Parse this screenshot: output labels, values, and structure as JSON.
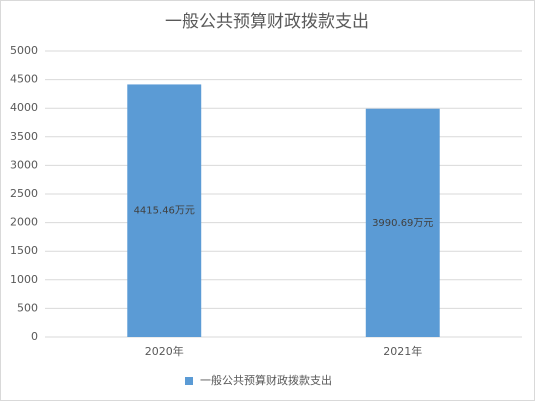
{
  "chart_data": {
    "type": "bar",
    "title": "一般公共预算财政拨款支出",
    "categories": [
      "2020年",
      "2021年"
    ],
    "series": [
      {
        "name": "一般公共预算财政拨款支出",
        "color": "#5b9bd5",
        "values": [
          4415.46,
          3990.69
        ],
        "value_labels": [
          "4415.46万元",
          "3990.69万元"
        ]
      }
    ],
    "ylim": [
      0,
      5000
    ],
    "yticks": [
      0,
      500,
      1000,
      1500,
      2000,
      2500,
      3000,
      3500,
      4000,
      4500,
      5000
    ],
    "grid": true,
    "legend": "bottom"
  }
}
